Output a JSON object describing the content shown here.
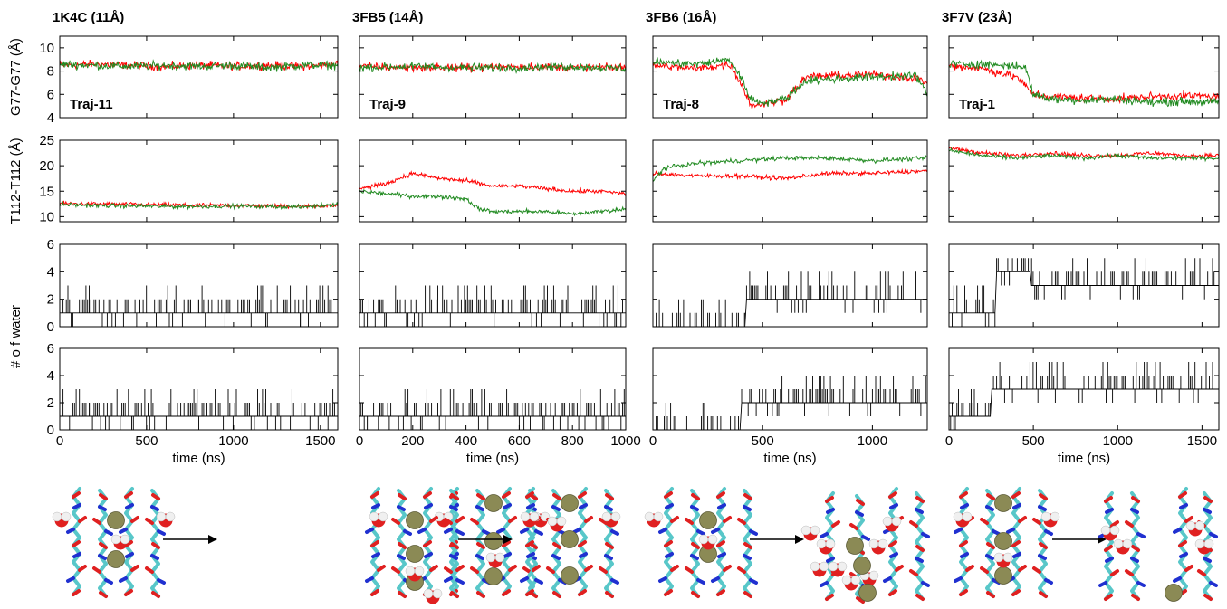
{
  "chart_data": [
    {
      "type": "line",
      "title": "1K4C (11Å)",
      "annotation": "Traj-11",
      "xlabel": "time (ns)",
      "xlim": [
        0,
        1600
      ],
      "xticks": [
        0,
        500,
        1000,
        1500
      ],
      "panels": {
        "g77": {
          "ylabel": "G77-G77 (Å)",
          "ylim": [
            4,
            11
          ],
          "yticks": [
            4,
            6,
            8,
            10
          ],
          "series": [
            {
              "color": "#ff0000",
              "x": [
                0,
                200,
                400,
                600,
                800,
                1000,
                1200,
                1400,
                1600
              ],
              "values": [
                8.5,
                8.6,
                8.5,
                8.4,
                8.5,
                8.4,
                8.5,
                8.4,
                8.6
              ]
            },
            {
              "color": "#228b22",
              "x": [
                0,
                200,
                400,
                600,
                800,
                1000,
                1200,
                1400,
                1600
              ],
              "values": [
                8.6,
                8.5,
                8.4,
                8.5,
                8.4,
                8.5,
                8.3,
                8.5,
                8.5
              ]
            }
          ]
        },
        "t112": {
          "ylabel": "T112-T112 (Å)",
          "ylim": [
            9,
            25
          ],
          "yticks": [
            10,
            15,
            20,
            25
          ],
          "series": [
            {
              "color": "#ff0000",
              "x": [
                0,
                200,
                400,
                600,
                800,
                1000,
                1200,
                1400,
                1600
              ],
              "values": [
                12.6,
                12.5,
                12.4,
                12.3,
                12.2,
                12.2,
                12.1,
                12.0,
                12.2
              ]
            },
            {
              "color": "#228b22",
              "x": [
                0,
                200,
                400,
                600,
                800,
                1000,
                1200,
                1400,
                1600
              ],
              "values": [
                12.4,
                12.2,
                12.1,
                12.0,
                12.0,
                12.1,
                12.0,
                11.9,
                12.5
              ]
            }
          ]
        },
        "water1": {
          "ylabel": "# o f water",
          "ylim": [
            0,
            6
          ],
          "yticks": [
            0,
            2,
            4,
            6
          ],
          "baseline": 1,
          "spike_max": 4
        },
        "water2": {
          "ylabel": "",
          "ylim": [
            0,
            6
          ],
          "yticks": [
            0,
            2,
            4,
            6
          ],
          "baseline": 1,
          "spike_max": 5
        }
      }
    },
    {
      "type": "line",
      "title": "3FB5 (14Å)",
      "annotation": "Traj-9",
      "xlabel": "time (ns)",
      "xlim": [
        0,
        1000
      ],
      "xticks": [
        0,
        200,
        400,
        600,
        800,
        1000
      ],
      "panels": {
        "g77": {
          "ylim": [
            4,
            11
          ],
          "yticks": [
            4,
            6,
            8,
            10
          ],
          "series": [
            {
              "color": "#ff0000",
              "x": [
                0,
                200,
                400,
                600,
                800,
                1000
              ],
              "values": [
                8.4,
                8.3,
                8.3,
                8.4,
                8.3,
                8.3
              ]
            },
            {
              "color": "#228b22",
              "x": [
                0,
                200,
                400,
                600,
                800,
                1000
              ],
              "values": [
                8.3,
                8.4,
                8.3,
                8.3,
                8.4,
                8.2
              ]
            }
          ]
        },
        "t112": {
          "ylim": [
            9,
            25
          ],
          "yticks": [
            10,
            15,
            20,
            25
          ],
          "series": [
            {
              "color": "#ff0000",
              "x": [
                0,
                100,
                200,
                300,
                400,
                500,
                600,
                700,
                800,
                900,
                1000
              ],
              "values": [
                15.5,
                16.5,
                18.5,
                17.5,
                17.0,
                16.0,
                16.0,
                15.5,
                15.0,
                15.0,
                14.5
              ]
            },
            {
              "color": "#228b22",
              "x": [
                0,
                100,
                200,
                300,
                400,
                450,
                500,
                600,
                700,
                800,
                900,
                1000
              ],
              "values": [
                15.0,
                14.5,
                14.0,
                14.0,
                13.5,
                11.5,
                11.0,
                11.0,
                11.0,
                10.5,
                11.0,
                11.5
              ]
            }
          ]
        },
        "water1": {
          "ylim": [
            0,
            6
          ],
          "yticks": [
            0,
            2,
            4,
            6
          ],
          "baseline": 1,
          "spike_max": 3
        },
        "water2": {
          "ylim": [
            0,
            6
          ],
          "yticks": [
            0,
            2,
            4,
            6
          ],
          "baseline": 1,
          "spike_max": 3
        }
      }
    },
    {
      "type": "line",
      "title": "3FB6 (16Å)",
      "annotation": "Traj-8",
      "xlabel": "time (ns)",
      "xlim": [
        0,
        1250
      ],
      "xticks": [
        0,
        500,
        1000
      ],
      "panels": {
        "g77": {
          "ylim": [
            4,
            11
          ],
          "yticks": [
            4,
            6,
            8,
            10
          ],
          "series": [
            {
              "color": "#ff0000",
              "x": [
                0,
                200,
                350,
                400,
                450,
                500,
                600,
                700,
                800,
                1000,
                1200,
                1250
              ],
              "values": [
                8.5,
                8.2,
                8.6,
                7.0,
                5.0,
                5.2,
                5.5,
                7.5,
                7.6,
                7.7,
                7.4,
                7.0
              ]
            },
            {
              "color": "#228b22",
              "x": [
                0,
                200,
                350,
                400,
                450,
                500,
                600,
                700,
                800,
                1000,
                1200,
                1250
              ],
              "values": [
                8.8,
                8.6,
                9.0,
                7.5,
                5.5,
                5.3,
                5.6,
                7.2,
                7.3,
                7.5,
                7.6,
                6.0
              ]
            }
          ]
        },
        "t112": {
          "ylim": [
            9,
            25
          ],
          "yticks": [
            10,
            15,
            20,
            25
          ],
          "series": [
            {
              "color": "#ff0000",
              "x": [
                0,
                200,
                400,
                600,
                800,
                1000,
                1250
              ],
              "values": [
                18.5,
                18.0,
                18.0,
                17.5,
                18.5,
                18.5,
                19.0
              ]
            },
            {
              "color": "#228b22",
              "x": [
                0,
                50,
                200,
                400,
                600,
                800,
                1000,
                1250
              ],
              "values": [
                17.0,
                19.5,
                20.5,
                21.0,
                21.5,
                21.5,
                21.0,
                21.5
              ]
            }
          ]
        },
        "water1": {
          "ylim": [
            0,
            6
          ],
          "yticks": [
            0,
            2,
            4,
            6
          ],
          "baseline": [
            [
              0,
              420,
              0
            ],
            [
              420,
              1250,
              2
            ]
          ],
          "spike_max": 4
        },
        "water2": {
          "ylim": [
            0,
            6
          ],
          "yticks": [
            0,
            2,
            4,
            6
          ],
          "baseline": [
            [
              0,
              400,
              0
            ],
            [
              400,
              1250,
              2
            ]
          ],
          "spike_max": 5
        }
      }
    },
    {
      "type": "line",
      "title": "3F7V (23Å)",
      "annotation": "Traj-1",
      "xlabel": "time (ns)",
      "xlim": [
        0,
        1600
      ],
      "xticks": [
        0,
        500,
        1000,
        1500
      ],
      "panels": {
        "g77": {
          "ylim": [
            4,
            11
          ],
          "yticks": [
            4,
            6,
            8,
            10
          ],
          "series": [
            {
              "color": "#ff0000",
              "x": [
                0,
                200,
                400,
                500,
                600,
                800,
                1000,
                1200,
                1400,
                1600
              ],
              "values": [
                8.5,
                8.2,
                7.5,
                6.0,
                5.8,
                5.7,
                5.6,
                5.8,
                5.9,
                5.8
              ]
            },
            {
              "color": "#228b22",
              "x": [
                0,
                200,
                450,
                500,
                600,
                800,
                1000,
                1200,
                1400,
                1600
              ],
              "values": [
                8.6,
                8.6,
                8.4,
                6.0,
                5.6,
                5.5,
                5.6,
                5.3,
                5.4,
                5.3
              ]
            }
          ]
        },
        "t112": {
          "ylim": [
            9,
            25
          ],
          "yticks": [
            10,
            15,
            20,
            25
          ],
          "series": [
            {
              "color": "#ff0000",
              "x": [
                0,
                200,
                400,
                600,
                800,
                1000,
                1200,
                1400,
                1600
              ],
              "values": [
                23.5,
                22.5,
                22.0,
                22.5,
                22.0,
                22.0,
                22.5,
                22.0,
                22.0
              ]
            },
            {
              "color": "#228b22",
              "x": [
                0,
                200,
                400,
                600,
                800,
                1000,
                1200,
                1400,
                1600
              ],
              "values": [
                23.0,
                22.0,
                21.5,
                22.0,
                21.5,
                22.0,
                21.5,
                21.5,
                21.5
              ]
            }
          ]
        },
        "water1": {
          "ylim": [
            0,
            6
          ],
          "yticks": [
            0,
            2,
            4,
            6
          ],
          "baseline": [
            [
              0,
              280,
              1
            ],
            [
              280,
              480,
              4
            ],
            [
              480,
              1600,
              3
            ]
          ],
          "spike_max": 5
        },
        "water2": {
          "ylim": [
            0,
            6
          ],
          "yticks": [
            0,
            2,
            4,
            6
          ],
          "baseline": [
            [
              0,
              250,
              1
            ],
            [
              250,
              1600,
              3
            ]
          ],
          "spike_max": 6
        }
      }
    }
  ],
  "colors": {
    "red_series": "#ff0000",
    "green_series": "#228b22",
    "water_series": "#000000",
    "ion": "#8b8a55",
    "carbon": "#58c7c9",
    "oxygen": "#e02020",
    "nitrogen": "#2030d0"
  }
}
